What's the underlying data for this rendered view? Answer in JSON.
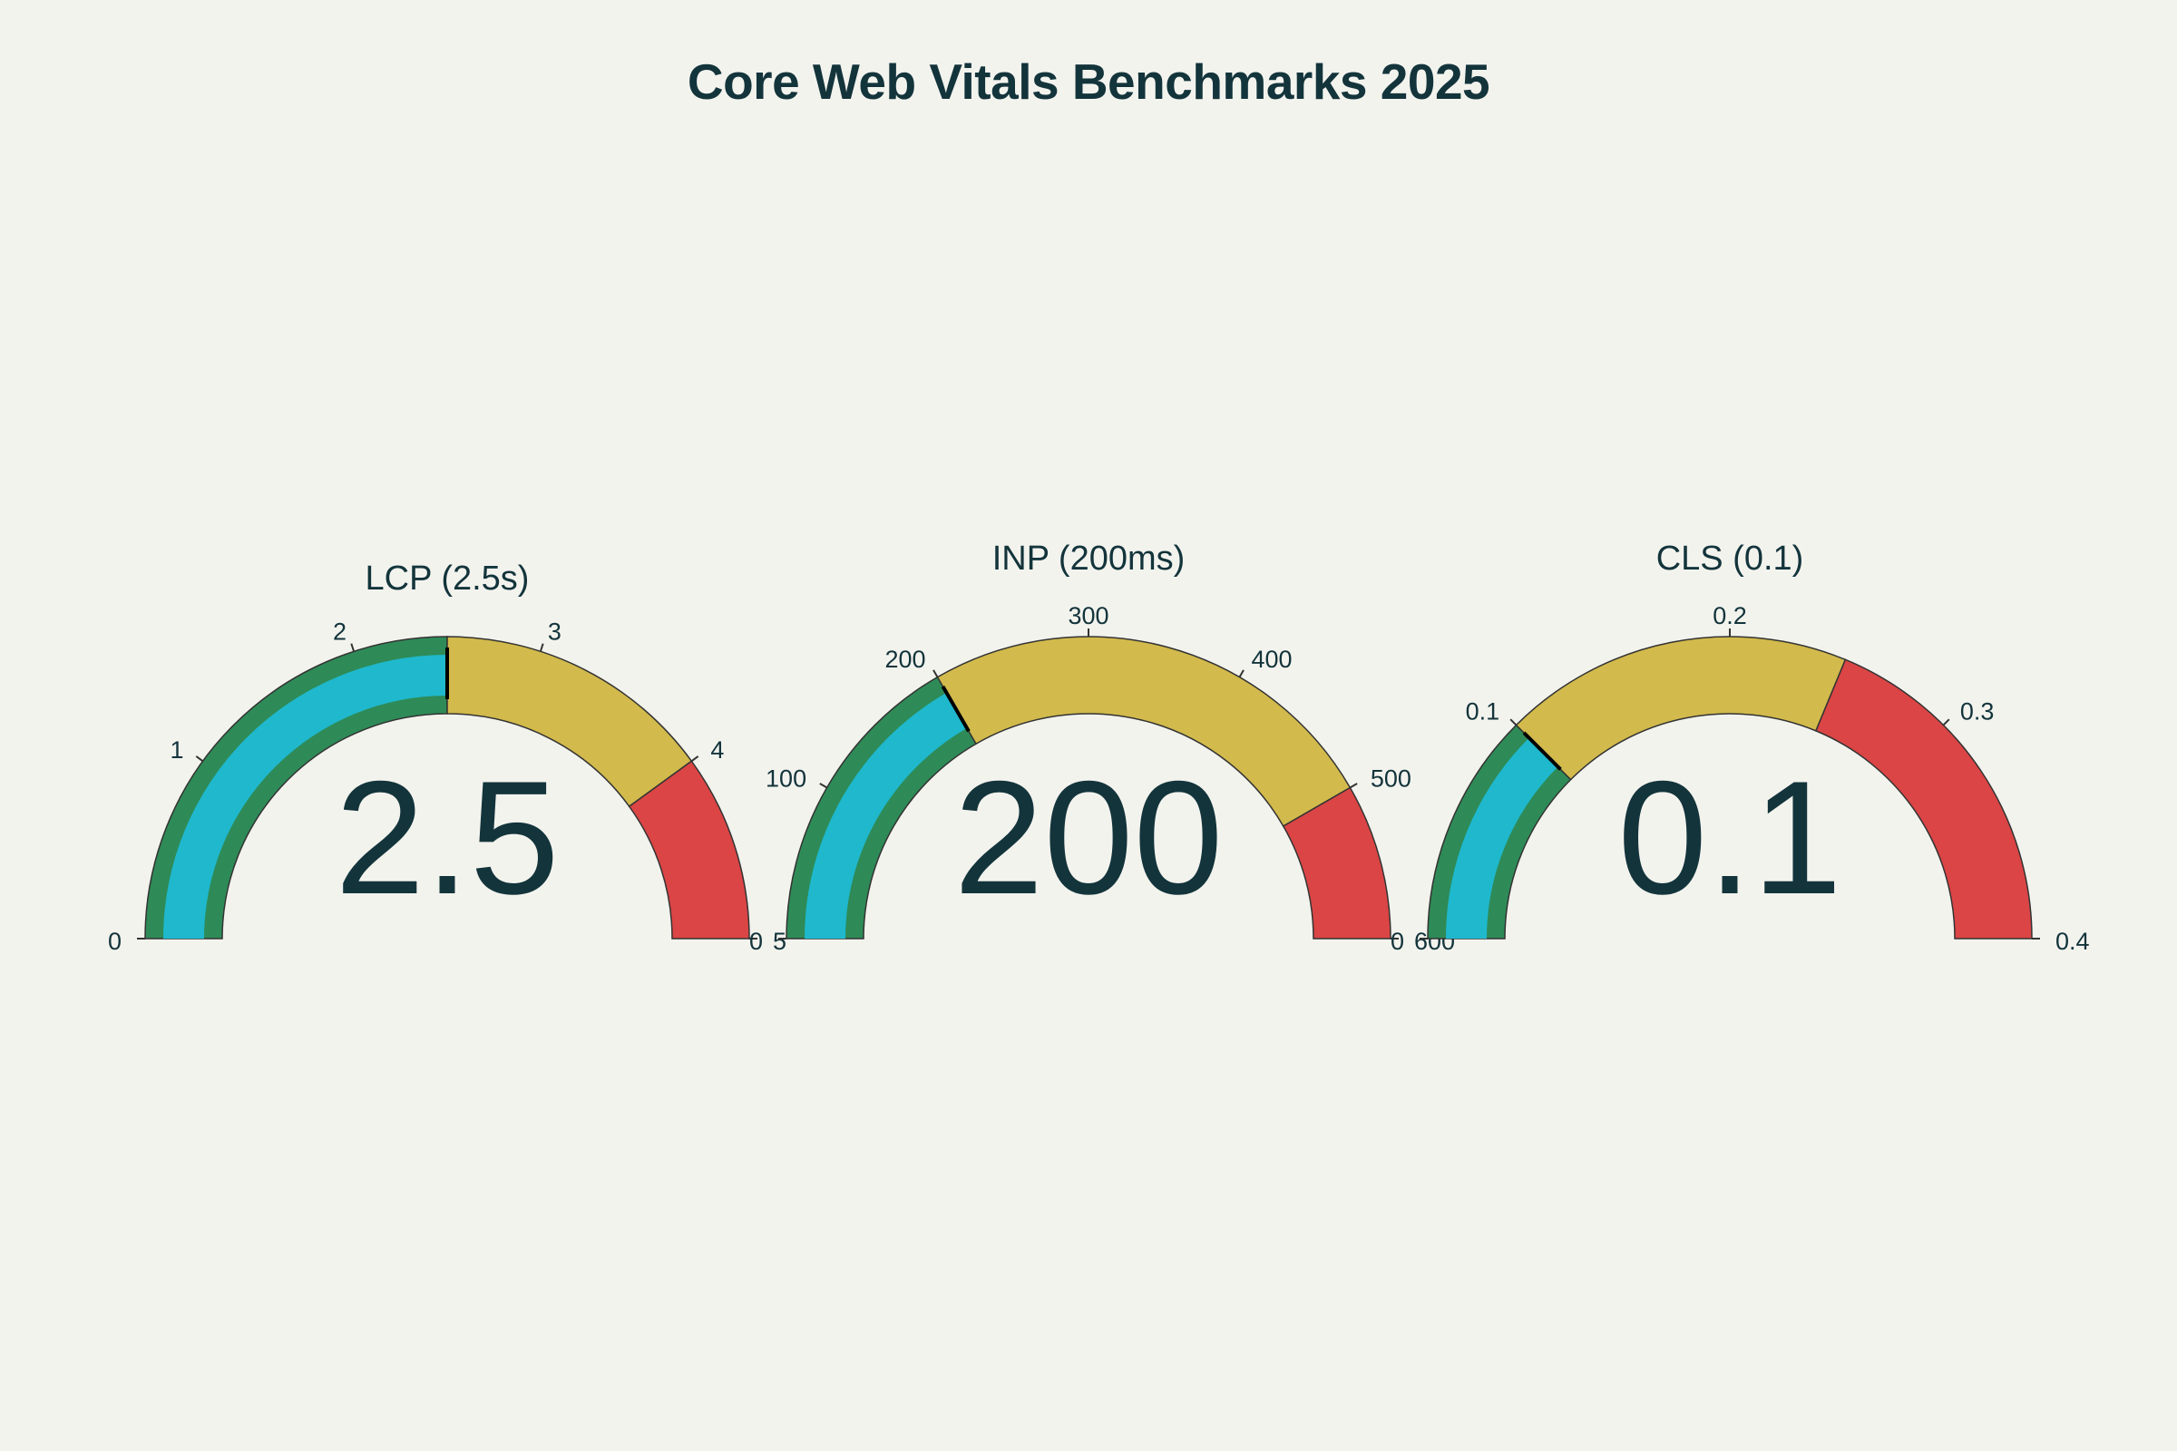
{
  "chart_data": {
    "type": "gauge",
    "title": "Core Web Vitals Benchmarks 2025",
    "colors": {
      "background": "#f3f3ee",
      "text": "#13343b",
      "bar": "#1fb8cd",
      "good": "#2e8b57",
      "needs_improvement": "#d2ba4c",
      "poor": "#db4545",
      "threshold": "#000000",
      "outline": "#333333"
    },
    "gauges": [
      {
        "title": "LCP (2.5s)",
        "value": 2.5,
        "value_label": "2.5",
        "range": [
          0,
          5
        ],
        "ticks": [
          0,
          1,
          2,
          3,
          4,
          5
        ],
        "tick_labels": [
          "0",
          "1",
          "2",
          "3",
          "4",
          "5"
        ],
        "steps": [
          {
            "range": [
              0,
              2.5
            ],
            "band": "good"
          },
          {
            "range": [
              2.5,
              4
            ],
            "band": "needs_improvement"
          },
          {
            "range": [
              4,
              5
            ],
            "band": "poor"
          }
        ],
        "threshold": 2.5
      },
      {
        "title": "INP (200ms)",
        "value": 200,
        "value_label": "200",
        "range": [
          0,
          600
        ],
        "ticks": [
          0,
          100,
          200,
          300,
          400,
          500,
          600
        ],
        "tick_labels": [
          "0",
          "100",
          "200",
          "300",
          "400",
          "500",
          "600"
        ],
        "steps": [
          {
            "range": [
              0,
              200
            ],
            "band": "good"
          },
          {
            "range": [
              200,
              500
            ],
            "band": "needs_improvement"
          },
          {
            "range": [
              500,
              600
            ],
            "band": "poor"
          }
        ],
        "threshold": 200
      },
      {
        "title": "CLS (0.1)",
        "value": 0.1,
        "value_label": "0.1",
        "range": [
          0,
          0.4
        ],
        "ticks": [
          0,
          0.1,
          0.2,
          0.3,
          0.4
        ],
        "tick_labels": [
          "0",
          "0.1",
          "0.2",
          "0.3",
          "0.4"
        ],
        "steps": [
          {
            "range": [
              0,
              0.1
            ],
            "band": "good"
          },
          {
            "range": [
              0.1,
              0.25
            ],
            "band": "needs_improvement"
          },
          {
            "range": [
              0.25,
              0.4
            ],
            "band": "poor"
          }
        ],
        "threshold": 0.1
      }
    ]
  }
}
